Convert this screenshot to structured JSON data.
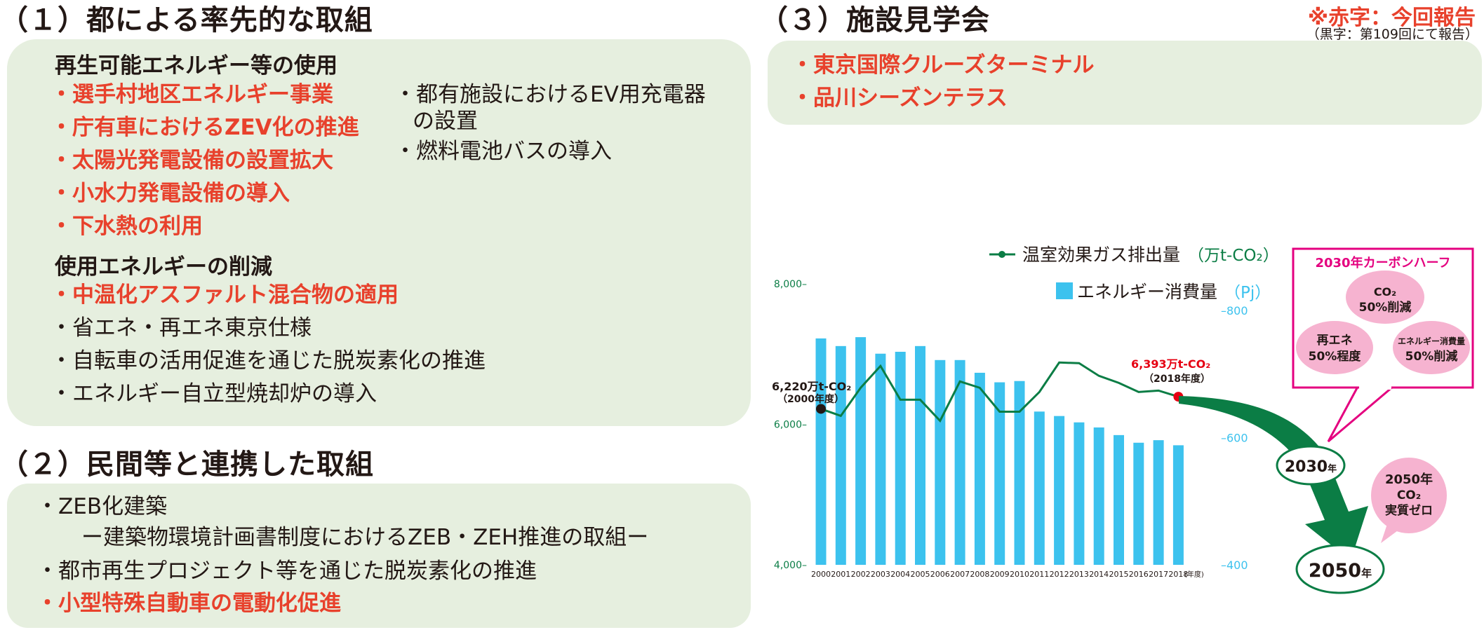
{
  "section1": {
    "title": "（１）都による率先的な取組",
    "heading_a": "再生可能エネルギー等の使用",
    "items_a_red": [
      "・選手村地区エネルギー事業",
      "・庁有車におけるZEV化の推進",
      "・太陽光発電設備の設置拡大",
      "・小水力発電設備の導入",
      "・下水熱の利用"
    ],
    "items_a_right": [
      "・都有施設におけるEV用充電器",
      "の設置",
      "・燃料電池バスの導入"
    ],
    "heading_b": "使用エネルギーの削減",
    "items_b": [
      {
        "text": "・中温化アスファルト混合物の適用",
        "color": "red"
      },
      {
        "text": "・省エネ・再エネ東京仕様",
        "color": "black"
      },
      {
        "text": "・自転車の活用促進を通じた脱炭素化の推進",
        "color": "black"
      },
      {
        "text": "・エネルギー自立型焼却炉の導入",
        "color": "black"
      }
    ]
  },
  "section2": {
    "title": "（２）民間等と連携した取組",
    "items": [
      {
        "text": "・ZEB化建築",
        "color": "black"
      },
      {
        "text": "ー建築物環境計画書制度におけるZEB・ZEH推進の取組ー",
        "color": "black"
      },
      {
        "text": "・都市再生プロジェクト等を通じた脱炭素化の推進",
        "color": "black"
      },
      {
        "text": "・小型特殊自動車の電動化促進",
        "color": "red"
      }
    ]
  },
  "section3": {
    "title": "（３）施設見学会",
    "items": [
      "・東京国際クルーズターミナル",
      "・品川シーズンテラス"
    ]
  },
  "note": {
    "red": "※赤字：今回報告",
    "small": "（黒字：第109回にて報告）"
  },
  "colors": {
    "red": "#e8412c",
    "green": "#0b7d45",
    "cyan": "#3cc2ee",
    "pink": "#f6b3d0",
    "magenta": "#e4007f",
    "box": "#e6efdf"
  },
  "chart_data": {
    "type": "bar+line",
    "categories": [
      "2000",
      "2001",
      "2002",
      "2003",
      "2004",
      "2005",
      "2006",
      "2007",
      "2008",
      "2009",
      "2010",
      "2011",
      "2012",
      "2013",
      "2014",
      "2015",
      "2016",
      "2017",
      "2018"
    ],
    "x_unit": "(年度)",
    "series": [
      {
        "name": "温室効果ガス排出量（万t-CO₂）",
        "type": "line",
        "axis": "left",
        "values": [
          6220,
          6120,
          6520,
          6830,
          6350,
          6350,
          6050,
          6610,
          6520,
          6180,
          6180,
          6460,
          6880,
          6870,
          6690,
          6590,
          6460,
          6480,
          6393
        ]
      },
      {
        "name": "エネルギー消費量（Pj）",
        "type": "bar",
        "axis": "right",
        "values": [
          756,
          744,
          758,
          732,
          735,
          744,
          722,
          722,
          702,
          687,
          689,
          641,
          634,
          624,
          616,
          604,
          592,
          596,
          588
        ]
      }
    ],
    "left_axis": {
      "ticks": [
        "8,000",
        "6,000",
        "4,000"
      ],
      "range": [
        4000,
        8000
      ]
    },
    "right_axis": {
      "ticks": [
        "800",
        "600",
        "400"
      ],
      "range": [
        400,
        810
      ]
    },
    "annotations": {
      "start_value": "6,220万t-CO₂",
      "start_year": "（2000年度）",
      "end_value": "6,393万t-CO₂",
      "end_year": "（2018年度）"
    },
    "legend": {
      "line": "温室効果ガス排出量",
      "line_unit": "（万t-CO₂）",
      "bar": "エネルギー消費量",
      "bar_unit": "（Pj）"
    }
  },
  "targets": {
    "year_2030": "2030",
    "year_2050": "2050",
    "year_suffix": "年",
    "half_title": "2030年カーボンハーフ",
    "co2_line1": "CO₂",
    "co2_line2": "50%削減",
    "re_line1": "再エネ",
    "re_line2": "50%程度",
    "en_line1": "エネルギー消費量",
    "en_line2": "50%削減",
    "zero_line1": "2050年",
    "zero_line2": "CO₂",
    "zero_line3": "実質ゼロ"
  }
}
